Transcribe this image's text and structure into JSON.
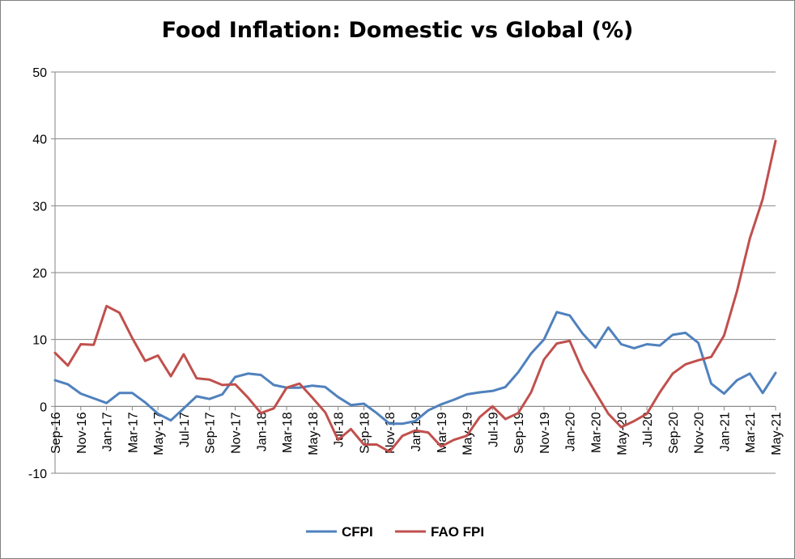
{
  "chart_data": {
    "type": "line",
    "title": "Food Inflation: Domestic vs Global (%)",
    "xlabel": "",
    "ylabel": "",
    "ylim": [
      -10,
      50
    ],
    "yticks": [
      -10,
      0,
      10,
      20,
      30,
      40,
      50
    ],
    "grid": "horizontal",
    "legend_position": "bottom",
    "x": [
      "Sep-16",
      "Oct-16",
      "Nov-16",
      "Dec-16",
      "Jan-17",
      "Feb-17",
      "Mar-17",
      "Apr-17",
      "May-17",
      "Jun-17",
      "Jul-17",
      "Aug-17",
      "Sep-17",
      "Oct-17",
      "Nov-17",
      "Dec-17",
      "Jan-18",
      "Feb-18",
      "Mar-18",
      "Apr-18",
      "May-18",
      "Jun-18",
      "Jul-18",
      "Aug-18",
      "Sep-18",
      "Oct-18",
      "Nov-18",
      "Dec-18",
      "Jan-19",
      "Feb-19",
      "Mar-19",
      "Apr-19",
      "May-19",
      "Jun-19",
      "Jul-19",
      "Aug-19",
      "Sep-19",
      "Oct-19",
      "Nov-19",
      "Dec-19",
      "Jan-20",
      "Feb-20",
      "Mar-20",
      "Apr-20",
      "May-20",
      "Jun-20",
      "Jul-20",
      "Aug-20",
      "Sep-20",
      "Oct-20",
      "Nov-20",
      "Dec-20",
      "Jan-21",
      "Feb-21",
      "Mar-21",
      "Apr-21",
      "May-21"
    ],
    "x_tick_labels": [
      "Sep-16",
      "Nov-16",
      "Jan-17",
      "Mar-17",
      "May-17",
      "Jul-17",
      "Sep-17",
      "Nov-17",
      "Jan-18",
      "Mar-18",
      "May-18",
      "Jul-18",
      "Sep-18",
      "Nov-18",
      "Jan-19",
      "Mar-19",
      "May-19",
      "Jul-19",
      "Sep-19",
      "Nov-19",
      "Jan-20",
      "Mar-20",
      "May-20",
      "Jul-20",
      "Sep-20",
      "Nov-20",
      "Jan-21",
      "Mar-21",
      "May-21"
    ],
    "series": [
      {
        "name": "CFPI",
        "color": "#4F81BD",
        "values": [
          3.9,
          3.3,
          1.9,
          1.2,
          0.5,
          2.0,
          2.0,
          0.6,
          -1.1,
          -2.1,
          -0.3,
          1.5,
          1.1,
          1.8,
          4.4,
          4.9,
          4.7,
          3.2,
          2.8,
          2.8,
          3.1,
          2.9,
          1.4,
          0.2,
          0.4,
          -1.0,
          -2.6,
          -2.6,
          -2.2,
          -0.6,
          0.3,
          1.0,
          1.8,
          2.1,
          2.3,
          2.9,
          5.1,
          7.9,
          10.0,
          14.1,
          13.6,
          10.9,
          8.8,
          11.8,
          9.3,
          8.7,
          9.3,
          9.1,
          10.7,
          11.0,
          9.5,
          3.4,
          1.9,
          3.9,
          4.9,
          2.0,
          5.0
        ]
      },
      {
        "name": "FAO FPI",
        "color": "#C0504D",
        "values": [
          8.0,
          6.1,
          9.3,
          9.2,
          15.0,
          14.0,
          10.2,
          6.8,
          7.6,
          4.5,
          7.8,
          4.2,
          4.0,
          3.2,
          3.3,
          1.3,
          -1.0,
          -0.3,
          2.8,
          3.4,
          1.3,
          -0.9,
          -5.0,
          -3.4,
          -5.7,
          -5.7,
          -6.8,
          -4.4,
          -3.6,
          -3.9,
          -6.0,
          -5.0,
          -4.4,
          -1.6,
          0.0,
          -1.9,
          -1.0,
          2.1,
          7.0,
          9.4,
          9.8,
          5.4,
          2.1,
          -1.1,
          -3.1,
          -2.2,
          -1.1,
          2.1,
          4.9,
          6.3,
          6.9,
          7.4,
          10.6,
          17.2,
          25.1,
          31.0,
          39.7
        ]
      }
    ]
  }
}
